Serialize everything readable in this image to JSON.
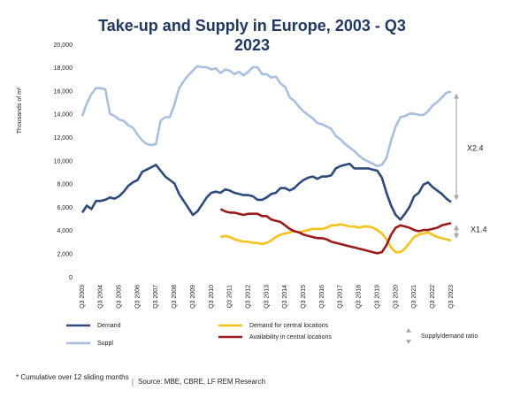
{
  "chart_data": {
    "type": "line",
    "title": "Take-up and Supply in Europe, 2003 - Q3 2023",
    "y_label": "Thousands of m²",
    "categories": [
      "Q3 2003",
      null,
      null,
      null,
      "Q3 2004",
      null,
      null,
      null,
      "Q3 2005",
      null,
      null,
      null,
      "Q3 2006",
      null,
      null,
      null,
      "Q3 2007",
      null,
      null,
      null,
      "Q3 2008",
      null,
      null,
      null,
      "Q3 2009",
      null,
      null,
      null,
      "Q3 2010",
      null,
      null,
      null,
      "Q3 2011",
      null,
      null,
      null,
      "Q3 2012",
      null,
      null,
      null,
      "Q3 2013",
      null,
      null,
      null,
      "Q3 2014",
      null,
      null,
      null,
      "Q3 2015",
      null,
      null,
      null,
      "Q3 2016",
      null,
      null,
      null,
      "Q3 2017",
      null,
      null,
      null,
      "Q3 2018",
      null,
      null,
      null,
      "Q3 2019",
      null,
      null,
      null,
      "Q3 2020",
      null,
      null,
      null,
      "Q3 2021",
      null,
      null,
      null,
      "Q3 2022",
      null,
      null,
      null,
      "Q3 2023"
    ],
    "series": [
      {
        "name": "Demand",
        "color": "#2e4a7d",
        "values": [
          5600,
          6200,
          5900,
          6600,
          6600,
          6700,
          6900,
          6800,
          7000,
          7400,
          7900,
          8200,
          8400,
          9100,
          9300,
          9500,
          9700,
          9200,
          8700,
          8400,
          8100,
          7200,
          6600,
          6000,
          5400,
          5700,
          6300,
          6900,
          7300,
          7400,
          7300,
          7600,
          7500,
          7300,
          7200,
          7100,
          7100,
          7000,
          6700,
          6700,
          6900,
          7200,
          7300,
          7700,
          7700,
          7500,
          7700,
          8100,
          8400,
          8600,
          8700,
          8500,
          8700,
          8700,
          8800,
          9400,
          9600,
          9700,
          9800,
          9400,
          9400,
          9400,
          9400,
          9300,
          9200,
          8600,
          7300,
          6200,
          5400,
          5000,
          5500,
          6100,
          7000,
          7300,
          8000,
          8200,
          7800,
          7500,
          7200,
          6800,
          6500
        ]
      },
      {
        "name": "Suppl",
        "color": "#a9bfe0",
        "values": [
          13900,
          15000,
          15800,
          16300,
          16300,
          16200,
          14100,
          13900,
          13600,
          13500,
          13100,
          12900,
          12300,
          11800,
          11500,
          11400,
          11500,
          13500,
          13800,
          13800,
          14900,
          16300,
          16900,
          17400,
          17800,
          18200,
          18100,
          18100,
          17900,
          18000,
          17600,
          17900,
          17800,
          17500,
          17700,
          17400,
          17700,
          18100,
          18100,
          17500,
          17500,
          17200,
          17300,
          16700,
          16400,
          15500,
          15200,
          14700,
          14300,
          14000,
          13700,
          13300,
          13200,
          13000,
          12800,
          12200,
          11900,
          11500,
          11200,
          10900,
          10500,
          10200,
          10000,
          9800,
          9600,
          9700,
          10300,
          11800,
          13000,
          13800,
          13900,
          14100,
          14100,
          14000,
          14000,
          14300,
          14800,
          15100,
          15500,
          15900,
          16000
        ]
      },
      {
        "name": "Demand for central locations",
        "color": "#f5c21b",
        "values": [
          null,
          null,
          null,
          null,
          null,
          null,
          null,
          null,
          null,
          null,
          null,
          null,
          null,
          null,
          null,
          null,
          null,
          null,
          null,
          null,
          null,
          null,
          null,
          null,
          null,
          null,
          null,
          null,
          null,
          null,
          3500,
          3600,
          3500,
          3300,
          3200,
          3100,
          3100,
          3000,
          3000,
          2900,
          3000,
          3200,
          3500,
          3700,
          3800,
          3900,
          4000,
          3900,
          4000,
          4100,
          4200,
          4200,
          4200,
          4300,
          4500,
          4500,
          4600,
          4500,
          4400,
          4400,
          4300,
          4400,
          4400,
          4300,
          4100,
          3800,
          3300,
          2600,
          2200,
          2200,
          2500,
          3000,
          3500,
          3700,
          3800,
          3900,
          3700,
          3500,
          3400,
          3300,
          3200
        ]
      },
      {
        "name": "Availability in central locations",
        "color": "#9b1b1b",
        "values": [
          null,
          null,
          null,
          null,
          null,
          null,
          null,
          null,
          null,
          null,
          null,
          null,
          null,
          null,
          null,
          null,
          null,
          null,
          null,
          null,
          null,
          null,
          null,
          null,
          null,
          null,
          null,
          null,
          null,
          null,
          5900,
          5700,
          5600,
          5600,
          5500,
          5400,
          5500,
          5500,
          5500,
          5300,
          5300,
          5000,
          4900,
          4800,
          4500,
          4200,
          4000,
          3900,
          3700,
          3600,
          3500,
          3400,
          3400,
          3300,
          3100,
          3000,
          2900,
          2800,
          2700,
          2600,
          2500,
          2400,
          2300,
          2200,
          2100,
          2200,
          2800,
          3700,
          4300,
          4500,
          4400,
          4300,
          4100,
          4000,
          4100,
          4100,
          4200,
          4300,
          4500,
          4600,
          4700
        ]
      }
    ],
    "ylim": [
      0,
      20000
    ],
    "yticks": [
      0,
      {
        "value": 2000,
        "label": "2,000"
      },
      {
        "value": 4000,
        "label": "4,000"
      },
      {
        "value": 6000,
        "label": "6,000"
      },
      {
        "value": 8000,
        "label": "8,000"
      },
      {
        "value": 10000,
        "label": "10,000"
      },
      {
        "value": 12000,
        "label": "12,000"
      },
      {
        "value": 14000,
        "label": "14,000"
      },
      {
        "value": 16000,
        "label": "16,000"
      },
      {
        "value": 18000,
        "label": "18,000"
      },
      {
        "value": 20000,
        "label": "20,000"
      }
    ],
    "grid": false,
    "annotations": [
      "X2.4",
      "X1.4"
    ],
    "ratio_legend": "Supply/demand ratio",
    "footnote": "* Cumulative over 12 sliding months",
    "source": "Source: MBE, CBRE, LF REM Research"
  }
}
